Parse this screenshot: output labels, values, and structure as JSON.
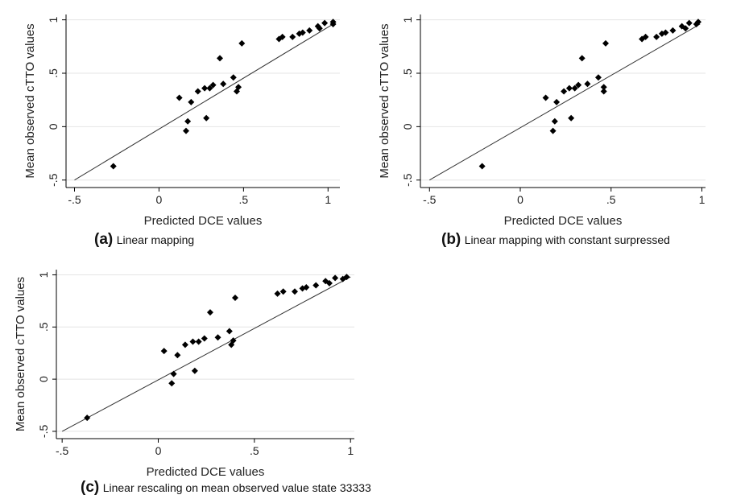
{
  "chart_data": [
    {
      "type": "scatter",
      "id": "a",
      "panel_label": "(a)",
      "caption": "Linear mapping",
      "xlabel": "Predicted DCE values",
      "ylabel": "Mean observed cTTO values",
      "xlim": [
        -0.55,
        1.07
      ],
      "ylim": [
        -0.57,
        1.05
      ],
      "xticks": [
        -0.5,
        0,
        0.5,
        1
      ],
      "xtick_labels": [
        "-.5",
        "0",
        ".5",
        "1"
      ],
      "yticks": [
        -0.5,
        0,
        0.5,
        1
      ],
      "ytick_labels": [
        "-.5",
        "0",
        ".5",
        "1"
      ],
      "grid": true,
      "fit_line": {
        "x": [
          -0.5,
          1.03
        ],
        "y": [
          -0.5,
          0.96
        ]
      },
      "points": [
        {
          "x": -0.27,
          "y": -0.37
        },
        {
          "x": 0.12,
          "y": 0.27
        },
        {
          "x": 0.16,
          "y": -0.04
        },
        {
          "x": 0.17,
          "y": 0.05
        },
        {
          "x": 0.19,
          "y": 0.23
        },
        {
          "x": 0.23,
          "y": 0.33
        },
        {
          "x": 0.27,
          "y": 0.36
        },
        {
          "x": 0.28,
          "y": 0.08
        },
        {
          "x": 0.3,
          "y": 0.36
        },
        {
          "x": 0.32,
          "y": 0.39
        },
        {
          "x": 0.36,
          "y": 0.64
        },
        {
          "x": 0.38,
          "y": 0.4
        },
        {
          "x": 0.44,
          "y": 0.46
        },
        {
          "x": 0.46,
          "y": 0.33
        },
        {
          "x": 0.47,
          "y": 0.37
        },
        {
          "x": 0.49,
          "y": 0.78
        },
        {
          "x": 0.71,
          "y": 0.82
        },
        {
          "x": 0.73,
          "y": 0.84
        },
        {
          "x": 0.79,
          "y": 0.84
        },
        {
          "x": 0.83,
          "y": 0.87
        },
        {
          "x": 0.85,
          "y": 0.88
        },
        {
          "x": 0.89,
          "y": 0.9
        },
        {
          "x": 0.94,
          "y": 0.94
        },
        {
          "x": 0.95,
          "y": 0.92
        },
        {
          "x": 0.98,
          "y": 0.97
        },
        {
          "x": 1.03,
          "y": 0.96
        },
        {
          "x": 1.03,
          "y": 0.98
        }
      ]
    },
    {
      "type": "scatter",
      "id": "b",
      "panel_label": "(b)",
      "caption": "Linear mapping with constant surpressed",
      "xlabel": "Predicted DCE values",
      "ylabel": "Mean observed cTTO values",
      "xlim": [
        -0.55,
        1.02
      ],
      "ylim": [
        -0.57,
        1.05
      ],
      "xticks": [
        -0.5,
        0,
        0.5,
        1
      ],
      "xtick_labels": [
        "-.5",
        "0",
        ".5",
        "1"
      ],
      "yticks": [
        -0.5,
        0,
        0.5,
        1
      ],
      "ytick_labels": [
        "-.5",
        "0",
        ".5",
        "1"
      ],
      "grid": true,
      "fit_line": {
        "x": [
          -0.5,
          0.99
        ],
        "y": [
          -0.5,
          0.96
        ]
      },
      "points": [
        {
          "x": -0.21,
          "y": -0.37
        },
        {
          "x": 0.14,
          "y": 0.27
        },
        {
          "x": 0.18,
          "y": -0.04
        },
        {
          "x": 0.19,
          "y": 0.05
        },
        {
          "x": 0.2,
          "y": 0.23
        },
        {
          "x": 0.24,
          "y": 0.33
        },
        {
          "x": 0.27,
          "y": 0.36
        },
        {
          "x": 0.28,
          "y": 0.08
        },
        {
          "x": 0.3,
          "y": 0.36
        },
        {
          "x": 0.32,
          "y": 0.39
        },
        {
          "x": 0.34,
          "y": 0.64
        },
        {
          "x": 0.37,
          "y": 0.4
        },
        {
          "x": 0.43,
          "y": 0.46
        },
        {
          "x": 0.46,
          "y": 0.33
        },
        {
          "x": 0.46,
          "y": 0.37
        },
        {
          "x": 0.47,
          "y": 0.78
        },
        {
          "x": 0.67,
          "y": 0.82
        },
        {
          "x": 0.69,
          "y": 0.84
        },
        {
          "x": 0.75,
          "y": 0.84
        },
        {
          "x": 0.78,
          "y": 0.87
        },
        {
          "x": 0.8,
          "y": 0.88
        },
        {
          "x": 0.84,
          "y": 0.9
        },
        {
          "x": 0.89,
          "y": 0.94
        },
        {
          "x": 0.91,
          "y": 0.92
        },
        {
          "x": 0.93,
          "y": 0.97
        },
        {
          "x": 0.97,
          "y": 0.96
        },
        {
          "x": 0.98,
          "y": 0.98
        }
      ]
    },
    {
      "type": "scatter",
      "id": "c",
      "panel_label": "(c)",
      "caption": "Linear rescaling on mean observed value state 33333",
      "xlabel": "Predicted DCE values",
      "ylabel": "Mean observed cTTO values",
      "xlim": [
        -0.53,
        1.02
      ],
      "ylim": [
        -0.57,
        1.05
      ],
      "xticks": [
        -0.5,
        0,
        0.5,
        1
      ],
      "xtick_labels": [
        "-.5",
        "0",
        ".5",
        "1"
      ],
      "yticks": [
        -0.5,
        0,
        0.5,
        1
      ],
      "ytick_labels": [
        "-.5",
        "0",
        ".5",
        "1"
      ],
      "grid": true,
      "fit_line": {
        "x": [
          -0.5,
          1.0
        ],
        "y": [
          -0.5,
          0.98
        ]
      },
      "points": [
        {
          "x": -0.37,
          "y": -0.37
        },
        {
          "x": 0.03,
          "y": 0.27
        },
        {
          "x": 0.07,
          "y": -0.04
        },
        {
          "x": 0.08,
          "y": 0.05
        },
        {
          "x": 0.1,
          "y": 0.23
        },
        {
          "x": 0.14,
          "y": 0.33
        },
        {
          "x": 0.18,
          "y": 0.36
        },
        {
          "x": 0.19,
          "y": 0.08
        },
        {
          "x": 0.21,
          "y": 0.36
        },
        {
          "x": 0.24,
          "y": 0.39
        },
        {
          "x": 0.27,
          "y": 0.64
        },
        {
          "x": 0.31,
          "y": 0.4
        },
        {
          "x": 0.37,
          "y": 0.46
        },
        {
          "x": 0.38,
          "y": 0.33
        },
        {
          "x": 0.39,
          "y": 0.37
        },
        {
          "x": 0.4,
          "y": 0.78
        },
        {
          "x": 0.62,
          "y": 0.82
        },
        {
          "x": 0.65,
          "y": 0.84
        },
        {
          "x": 0.71,
          "y": 0.84
        },
        {
          "x": 0.75,
          "y": 0.87
        },
        {
          "x": 0.77,
          "y": 0.88
        },
        {
          "x": 0.82,
          "y": 0.9
        },
        {
          "x": 0.87,
          "y": 0.94
        },
        {
          "x": 0.89,
          "y": 0.92
        },
        {
          "x": 0.92,
          "y": 0.97
        },
        {
          "x": 0.96,
          "y": 0.96
        },
        {
          "x": 0.98,
          "y": 0.98
        }
      ]
    }
  ]
}
